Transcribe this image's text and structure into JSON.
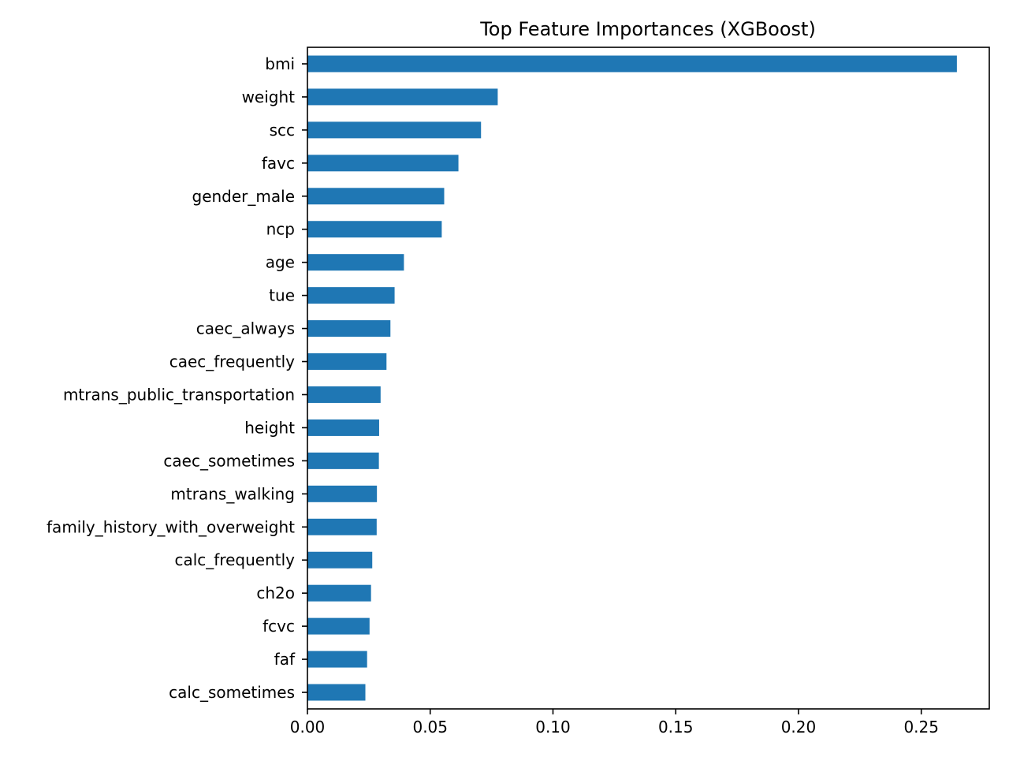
{
  "chart_data": {
    "type": "bar",
    "orientation": "horizontal",
    "title": "Top Feature Importances (XGBoost)",
    "xlabel": "",
    "ylabel": "",
    "categories": [
      "bmi",
      "weight",
      "scc",
      "favc",
      "gender_male",
      "ncp",
      "age",
      "tue",
      "caec_always",
      "caec_frequently",
      "mtrans_public_transportation",
      "height",
      "caec_sometimes",
      "mtrans_walking",
      "family_history_with_overweight",
      "calc_frequently",
      "ch2o",
      "fcvc",
      "faf",
      "calc_sometimes"
    ],
    "values": [
      0.2645,
      0.0775,
      0.0707,
      0.0615,
      0.0557,
      0.0547,
      0.0393,
      0.0355,
      0.0338,
      0.0322,
      0.0298,
      0.0292,
      0.0291,
      0.0283,
      0.0282,
      0.0264,
      0.0259,
      0.0253,
      0.0243,
      0.0236
    ],
    "xlim": [
      0,
      0.2777
    ],
    "xticks": [
      "0.00",
      "0.05",
      "0.10",
      "0.15",
      "0.20",
      "0.25"
    ],
    "xtick_values": [
      0,
      0.05,
      0.1,
      0.15,
      0.2,
      0.25
    ],
    "grid": false,
    "legend": "none",
    "bar_color": "#1f77b4"
  }
}
